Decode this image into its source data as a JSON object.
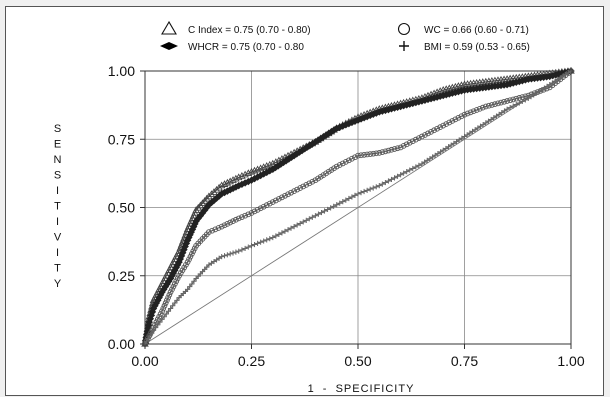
{
  "chart_data": {
    "type": "line",
    "title": "",
    "xlabel": "1  -  SPECIFICITY",
    "ylabel": "SENSITIVITY",
    "xlim": [
      0,
      1
    ],
    "ylim": [
      0,
      1
    ],
    "x_ticks": [
      "0.00",
      "0.25",
      "0.50",
      "0.75",
      "1.00"
    ],
    "y_ticks": [
      "0.00",
      "0.25",
      "0.50",
      "0.75",
      "1.00"
    ],
    "grid": true,
    "legend_position": "top",
    "reference_line": [
      [
        0,
        0
      ],
      [
        1,
        1
      ]
    ],
    "series": [
      {
        "name": "C Index",
        "legend_text": "C Index = 0.75 (0.70 - 0.80)",
        "marker": "triangle-open",
        "color": "#444444",
        "points": [
          [
            0,
            0
          ],
          [
            0.01,
            0.1
          ],
          [
            0.02,
            0.16
          ],
          [
            0.04,
            0.22
          ],
          [
            0.06,
            0.28
          ],
          [
            0.08,
            0.34
          ],
          [
            0.1,
            0.42
          ],
          [
            0.12,
            0.49
          ],
          [
            0.15,
            0.54
          ],
          [
            0.18,
            0.58
          ],
          [
            0.22,
            0.61
          ],
          [
            0.25,
            0.63
          ],
          [
            0.3,
            0.66
          ],
          [
            0.35,
            0.7
          ],
          [
            0.4,
            0.74
          ],
          [
            0.45,
            0.79
          ],
          [
            0.5,
            0.83
          ],
          [
            0.55,
            0.86
          ],
          [
            0.6,
            0.88
          ],
          [
            0.65,
            0.9
          ],
          [
            0.7,
            0.93
          ],
          [
            0.75,
            0.95
          ],
          [
            0.8,
            0.96
          ],
          [
            0.85,
            0.97
          ],
          [
            0.9,
            0.98
          ],
          [
            0.95,
            0.99
          ],
          [
            1,
            1
          ]
        ]
      },
      {
        "name": "WHCR",
        "legend_text": "WHCR = 0.75 (0.70 - 0.80",
        "marker": "diamond-filled",
        "color": "#222222",
        "points": [
          [
            0,
            0
          ],
          [
            0.01,
            0.08
          ],
          [
            0.02,
            0.13
          ],
          [
            0.04,
            0.19
          ],
          [
            0.06,
            0.24
          ],
          [
            0.08,
            0.3
          ],
          [
            0.1,
            0.38
          ],
          [
            0.12,
            0.45
          ],
          [
            0.15,
            0.51
          ],
          [
            0.18,
            0.55
          ],
          [
            0.22,
            0.58
          ],
          [
            0.25,
            0.6
          ],
          [
            0.3,
            0.64
          ],
          [
            0.35,
            0.69
          ],
          [
            0.4,
            0.74
          ],
          [
            0.45,
            0.79
          ],
          [
            0.5,
            0.82
          ],
          [
            0.55,
            0.85
          ],
          [
            0.6,
            0.87
          ],
          [
            0.65,
            0.89
          ],
          [
            0.7,
            0.91
          ],
          [
            0.75,
            0.93
          ],
          [
            0.8,
            0.94
          ],
          [
            0.85,
            0.95
          ],
          [
            0.9,
            0.97
          ],
          [
            0.95,
            0.98
          ],
          [
            1,
            1
          ]
        ]
      },
      {
        "name": "WC",
        "legend_text": "WC = 0.66 (0.60 - 0.71)",
        "marker": "circle-open",
        "color": "#555555",
        "points": [
          [
            0,
            0
          ],
          [
            0.02,
            0.06
          ],
          [
            0.04,
            0.12
          ],
          [
            0.06,
            0.19
          ],
          [
            0.08,
            0.25
          ],
          [
            0.1,
            0.3
          ],
          [
            0.12,
            0.36
          ],
          [
            0.15,
            0.41
          ],
          [
            0.18,
            0.43
          ],
          [
            0.22,
            0.46
          ],
          [
            0.25,
            0.48
          ],
          [
            0.3,
            0.52
          ],
          [
            0.35,
            0.56
          ],
          [
            0.4,
            0.6
          ],
          [
            0.45,
            0.65
          ],
          [
            0.5,
            0.69
          ],
          [
            0.55,
            0.7
          ],
          [
            0.6,
            0.72
          ],
          [
            0.65,
            0.76
          ],
          [
            0.7,
            0.8
          ],
          [
            0.75,
            0.84
          ],
          [
            0.8,
            0.87
          ],
          [
            0.85,
            0.89
          ],
          [
            0.9,
            0.91
          ],
          [
            0.95,
            0.94
          ],
          [
            1,
            1
          ]
        ]
      },
      {
        "name": "BMI",
        "legend_text": "BMI = 0.59 (0.53 - 0.65)",
        "marker": "plus",
        "color": "#666666",
        "points": [
          [
            0,
            0
          ],
          [
            0.02,
            0.05
          ],
          [
            0.04,
            0.09
          ],
          [
            0.06,
            0.13
          ],
          [
            0.08,
            0.17
          ],
          [
            0.1,
            0.2
          ],
          [
            0.12,
            0.24
          ],
          [
            0.15,
            0.29
          ],
          [
            0.18,
            0.32
          ],
          [
            0.22,
            0.34
          ],
          [
            0.25,
            0.36
          ],
          [
            0.3,
            0.39
          ],
          [
            0.35,
            0.43
          ],
          [
            0.4,
            0.47
          ],
          [
            0.45,
            0.51
          ],
          [
            0.5,
            0.55
          ],
          [
            0.55,
            0.58
          ],
          [
            0.6,
            0.62
          ],
          [
            0.65,
            0.66
          ],
          [
            0.7,
            0.71
          ],
          [
            0.75,
            0.76
          ],
          [
            0.8,
            0.81
          ],
          [
            0.85,
            0.86
          ],
          [
            0.9,
            0.9
          ],
          [
            0.95,
            0.95
          ],
          [
            1,
            1
          ]
        ]
      }
    ]
  }
}
